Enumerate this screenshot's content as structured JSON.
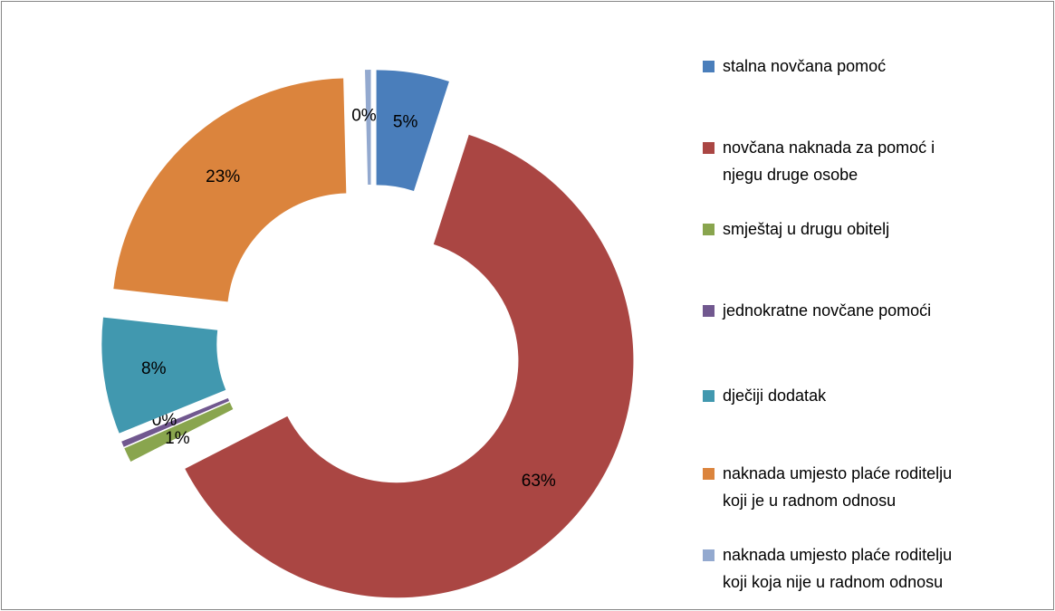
{
  "chart_data": {
    "type": "donut",
    "categories": [
      "stalna novčana  pomoć",
      "novčana naknada za pomoć i njegu druge osobe",
      "smještaj u drugu obitelj",
      "jednokratne novčane pomoći",
      "dječiji dodatak",
      "naknada umjesto plaće roditelju koji je u radnom odnosu",
      "naknada umjesto plaće roditelju koji koja nije u radnom odnosu"
    ],
    "values": [
      5,
      63,
      1,
      0.4,
      8,
      23,
      0.4
    ],
    "value_labels": [
      "5%",
      "63%",
      "1%",
      "0%",
      "8%",
      "23%",
      "0%"
    ],
    "colors": [
      "#4a7ebb",
      "#aa4643",
      "#89a54e",
      "#71588f",
      "#4198af",
      "#db843d",
      "#93a9cf"
    ],
    "exploded": true
  }
}
